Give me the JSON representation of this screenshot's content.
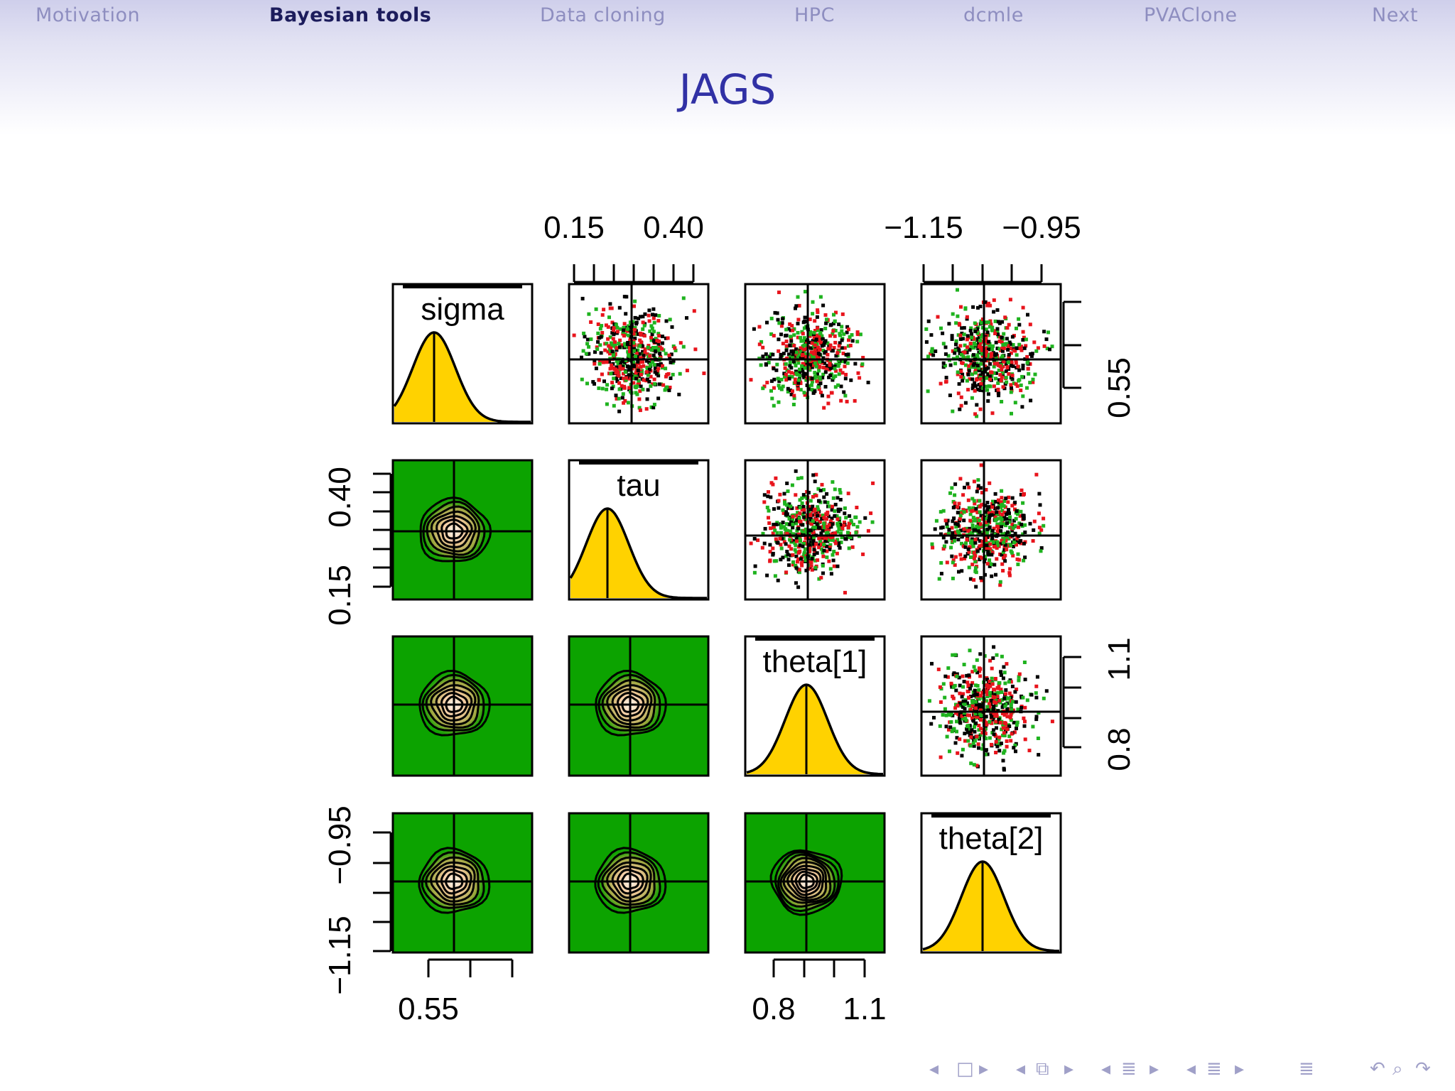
{
  "nav": {
    "items": [
      {
        "label": "Motivation"
      },
      {
        "label": "Bayesian tools",
        "active": true
      },
      {
        "label": "Data cloning"
      },
      {
        "label": "HPC"
      },
      {
        "label": "dcmle"
      },
      {
        "label": "PVAClone"
      },
      {
        "label": "Next"
      }
    ]
  },
  "frame": {
    "title": "JAGS"
  },
  "chart_data": {
    "type": "scatter",
    "description_type": "pairs",
    "variables": [
      "sigma",
      "tau",
      "theta[1]",
      "theta[2]"
    ],
    "means": {
      "sigma": 0.575,
      "tau": 0.26,
      "theta[1]": 0.98,
      "theta[2]": -1.05
    },
    "axes": {
      "top": [
        {
          "variable": "tau",
          "ticks": [
            "0.15",
            "0.40"
          ]
        },
        {
          "variable": "theta[2]",
          "ticks": [
            "−1.15",
            "−0.95"
          ]
        }
      ],
      "bottom": [
        {
          "variable": "sigma",
          "ticks": [
            "0.55"
          ]
        },
        {
          "variable": "theta[1]",
          "ticks": [
            "0.8",
            "1.1"
          ]
        }
      ],
      "left": [
        {
          "variable": "tau",
          "ticks": [
            "0.40",
            "0.15"
          ]
        },
        {
          "variable": "theta[2]",
          "ticks": [
            "−0.95",
            "−1.15"
          ]
        }
      ],
      "right": [
        {
          "variable": "sigma",
          "ticks": [
            "0.55"
          ]
        },
        {
          "variable": "theta[1]",
          "ticks": [
            "1.1",
            "0.8"
          ]
        }
      ]
    },
    "upper_panels": "scatter of MCMC chains",
    "lower_panels": "density contours",
    "diagonal": "marginal density",
    "chain_colors": [
      "#000000",
      "#e8141c",
      "#1fb31f"
    ],
    "density_fill": "#ffd200",
    "contour_background": "#0ca300"
  },
  "beamer_nav": [
    "◂",
    "□",
    "▸",
    "◂",
    "⧉",
    "▸",
    "◂",
    "≣",
    "▸",
    "◂",
    "≣",
    "▸",
    "≣",
    "↶",
    "⌕",
    "↷"
  ]
}
